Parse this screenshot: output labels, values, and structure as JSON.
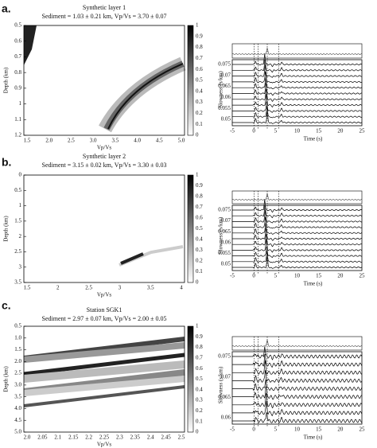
{
  "panels": [
    {
      "letter": "a.",
      "title": "Synthetic layer 1",
      "subtitle": "Sediment = 1.03 ± 0.21 km, Vp/Vs = 3.70 ± 0.07",
      "depth_label": "Depth (km)",
      "depth_ticks": [
        "0.5",
        "0.6",
        "0.7",
        "0.8",
        "0.9",
        "1",
        "1.1",
        "1.2"
      ],
      "vpvs_label": "Vp/Vs",
      "vpvs_ticks": [
        "1.5",
        "2.0",
        "2.5",
        "3.0",
        "3.5",
        "4.0",
        "4.5",
        "5.0"
      ],
      "colorbar_ticks": [
        "0",
        "0.1",
        "0.2",
        "0.3",
        "0.4",
        "0.5",
        "0.6",
        "0.7",
        "0.8",
        "0.9",
        "1"
      ],
      "slowness_label": "Slowness (s/km)",
      "slowness_ticks": [
        "0.075",
        "0.07",
        "0.065",
        "0.06",
        "0.055",
        "0.05"
      ],
      "time_label": "Time (s)",
      "time_ticks": [
        "-5",
        "0",
        "5",
        "10",
        "15",
        "20",
        "25"
      ]
    },
    {
      "letter": "b.",
      "title": "Synthetic layer 2",
      "subtitle": "Sediment = 3.15 ± 0.02 km, Vp/Vs = 3.30 ± 0.03",
      "depth_label": "Depth (km)",
      "depth_ticks": [
        "0",
        "0.5",
        "1",
        "1.5",
        "2",
        "2.5",
        "3",
        "3.5"
      ],
      "vpvs_label": "Vp/Vs",
      "vpvs_ticks": [
        "1.5",
        "2",
        "2.5",
        "3",
        "3.5",
        "4"
      ],
      "colorbar_ticks": [
        "0",
        "0.1",
        "0.2",
        "0.3",
        "0.4",
        "0.5",
        "0.6",
        "0.7",
        "0.8",
        "0.9",
        "1"
      ],
      "slowness_label": "Slowness (s/km)",
      "slowness_ticks": [
        "0.075",
        "0.07",
        "0.065",
        "0.06",
        "0.055",
        "0.05"
      ],
      "time_label": "Time (s)",
      "time_ticks": [
        "-5",
        "0",
        "5",
        "10",
        "15",
        "20",
        "25"
      ]
    },
    {
      "letter": "c.",
      "title": "Station SGK1",
      "subtitle": "Sediment = 2.97 ± 0.07 km, Vp/Vs = 2.00 ± 0.05",
      "depth_label": "Depth (km)",
      "depth_ticks": [
        "0.5",
        "1.0",
        "1.5",
        "2.0",
        "2.5",
        "3.0",
        "3.5",
        "4.0",
        "4.5",
        "5.0"
      ],
      "vpvs_label": "Vp/Vs",
      "vpvs_ticks": [
        "2.0",
        "2.05",
        "2.1",
        "2.15",
        "2.2",
        "2.25",
        "2.3",
        "2.35",
        "2.4",
        "2.45",
        "2.5"
      ],
      "colorbar_ticks": [
        "0",
        "0.1",
        "0.2",
        "0.3",
        "0.4",
        "0.5",
        "0.6",
        "0.7",
        "0.8",
        "0.9",
        "1"
      ],
      "slowness_label": "Slowness (s/km)",
      "slowness_ticks": [
        "0.075",
        "0.07",
        "0.065",
        "0.06"
      ],
      "time_label": "Time (s)",
      "time_ticks": [
        "-5",
        "0",
        "5",
        "10",
        "15",
        "20",
        "25"
      ]
    }
  ]
}
